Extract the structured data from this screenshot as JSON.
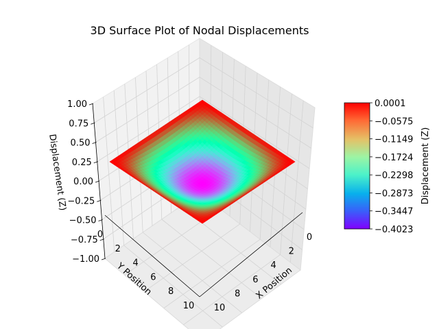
{
  "chart_data": {
    "type": "surface",
    "title": "3D Surface Plot of Nodal Displacements",
    "xlabel": "X Position",
    "ylabel": "Y Position",
    "zlabel": "Displacement (Z)",
    "xlim": [
      0,
      10
    ],
    "ylim": [
      0,
      10
    ],
    "zlim": [
      -1.0,
      1.0
    ],
    "x_ticks": [
      "0",
      "2",
      "4",
      "6",
      "8",
      "10"
    ],
    "y_ticks": [
      "0",
      "2",
      "4",
      "6",
      "8",
      "10"
    ],
    "z_ticks": [
      "1.00",
      "0.75",
      "0.50",
      "0.25",
      "0.00",
      "−0.25",
      "−0.50",
      "−0.75",
      "−1.00"
    ],
    "surface": {
      "shape": "bowl",
      "z_edges": 0.0001,
      "z_center": -0.4023,
      "center": [
        5,
        5
      ]
    },
    "colorbar": {
      "label": "Displacement (Z)",
      "colormap": "rainbow",
      "min": -0.4023,
      "max": 0.0001,
      "ticks": [
        "0.0001",
        "−0.0575",
        "−0.1149",
        "−0.1724",
        "−0.2298",
        "−0.2873",
        "−0.3447",
        "−0.4023"
      ]
    },
    "grid": true
  }
}
